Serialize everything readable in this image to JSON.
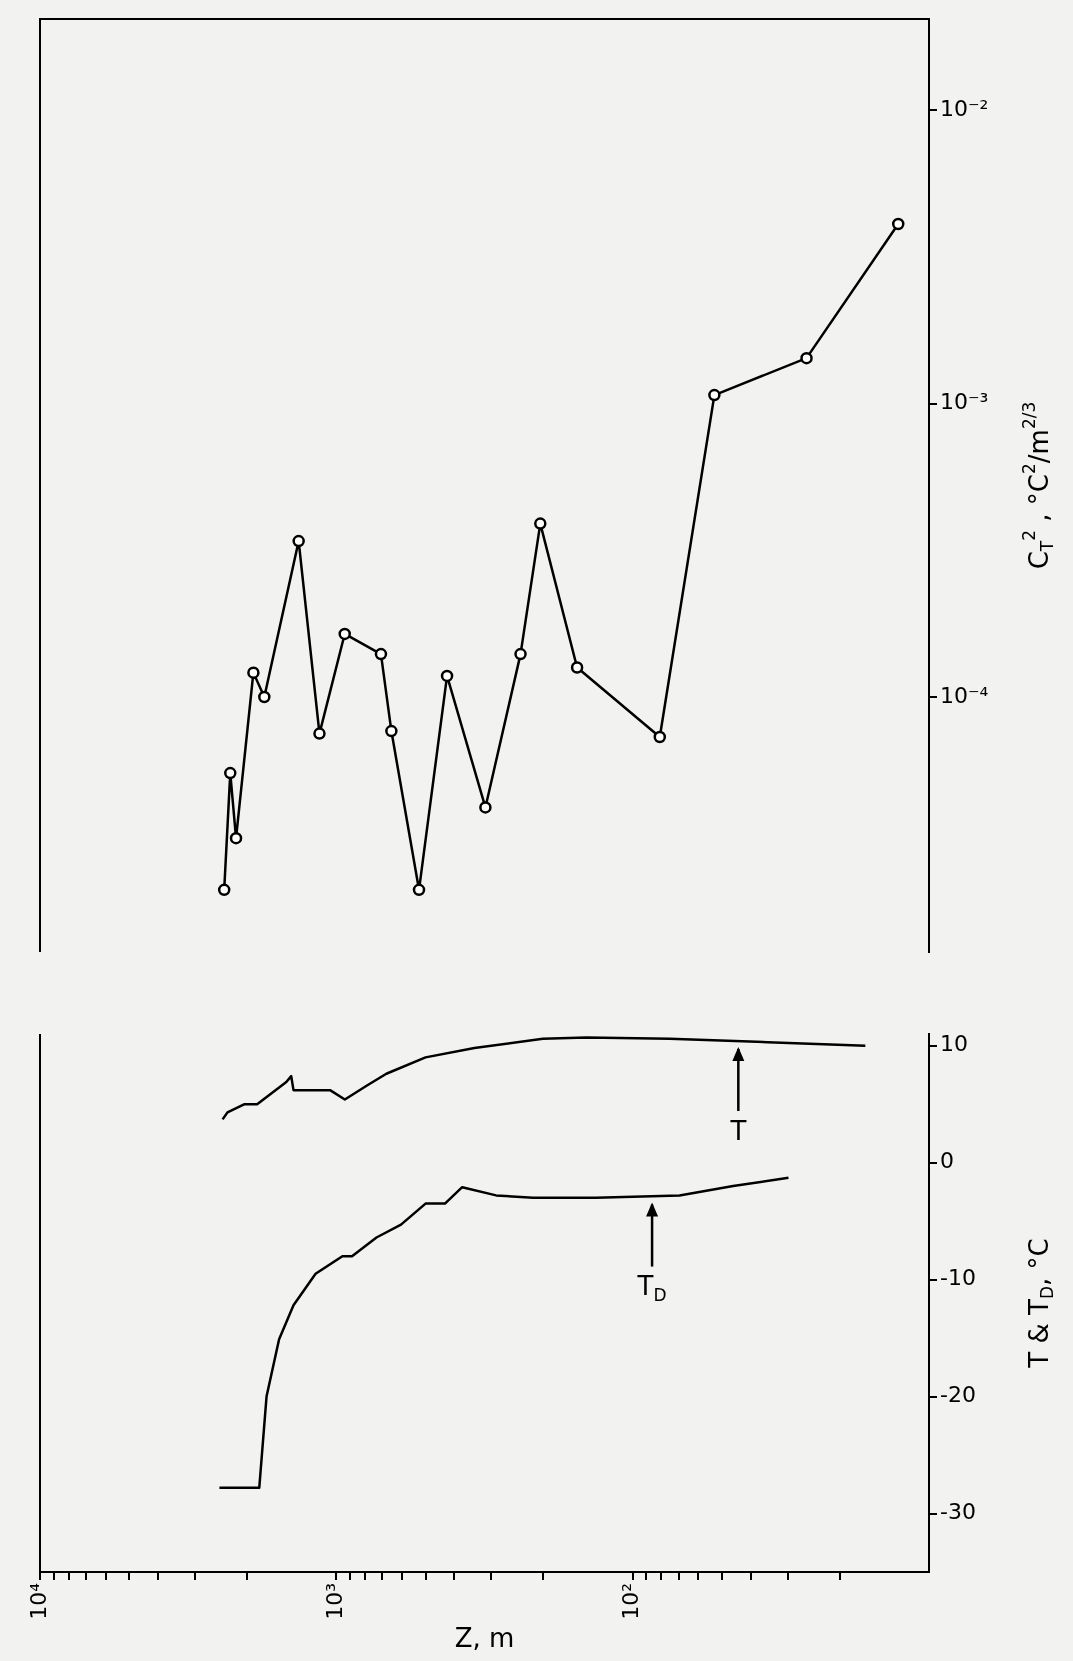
{
  "chart_data": [
    {
      "type": "line",
      "ylabel": "C$_{T}$$^{2}$ , °C$^{2}$/m$^{2/3}$",
      "log": "xy",
      "xlim": [
        10000,
        10
      ],
      "ylim": [
        1.35e-05,
        0.0205
      ],
      "yticks": [
        {
          "value": 0.0001,
          "label": "10⁻⁴"
        },
        {
          "value": 0.001,
          "label": "10⁻³"
        },
        {
          "value": 0.01,
          "label": "10⁻²"
        }
      ],
      "tick_labels": "y",
      "grid": false,
      "legend": false,
      "marker": "circle",
      "line_style": "solid",
      "series": [
        {
          "color": "#000000",
          "x": [
            2390,
            2280,
            2180,
            1905,
            1750,
            1340,
            1140,
            937,
            707,
            652,
            526,
            423,
            314,
            239,
            205,
            154,
            81,
            53,
            25.9,
            12.7
          ],
          "values": [
            2.2e-05,
            5.5e-05,
            3.3e-05,
            0.000121,
            0.0001,
            0.00034,
            7.5e-05,
            0.000164,
            0.00014,
            7.65e-05,
            2.2e-05,
            0.000118,
            4.2e-05,
            0.00014,
            0.00039,
            0.000126,
            7.3e-05,
            0.00107,
            0.00143,
            0.0041
          ]
        }
      ]
    },
    {
      "type": "line",
      "xlabel": "Z, m",
      "ylabel": "T & T$_{D}$, °C",
      "log": "x",
      "xlim": [
        10000,
        10
      ],
      "ylim": [
        -35,
        11
      ],
      "xticks": [
        {
          "value": 10000,
          "label": "10⁴"
        },
        {
          "value": 9000,
          "label": null
        },
        {
          "value": 8000,
          "label": null
        },
        {
          "value": 7000,
          "label": null
        },
        {
          "value": 6000,
          "label": null
        },
        {
          "value": 5000,
          "label": null
        },
        {
          "value": 4000,
          "label": null
        },
        {
          "value": 3000,
          "label": null
        },
        {
          "value": 2000,
          "label": null
        },
        {
          "value": 1000,
          "label": "10³"
        },
        {
          "value": 900,
          "label": null
        },
        {
          "value": 800,
          "label": null
        },
        {
          "value": 700,
          "label": null
        },
        {
          "value": 600,
          "label": null
        },
        {
          "value": 500,
          "label": null
        },
        {
          "value": 400,
          "label": null
        },
        {
          "value": 300,
          "label": null
        },
        {
          "value": 200,
          "label": null
        },
        {
          "value": 100,
          "label": "10²"
        },
        {
          "value": 90,
          "label": null
        },
        {
          "value": 80,
          "label": null
        },
        {
          "value": 70,
          "label": null
        },
        {
          "value": 60,
          "label": null
        },
        {
          "value": 50,
          "label": null
        },
        {
          "value": 40,
          "label": null
        },
        {
          "value": 30,
          "label": null
        },
        {
          "value": 20,
          "label": null
        }
      ],
      "yticks": [
        -30,
        -20,
        -10,
        0,
        10
      ],
      "grid": false,
      "legend": false,
      "marker": "none",
      "line_style": "solid",
      "annotations": [
        {
          "text": "T",
          "x": 44,
          "y": 10.4
        },
        {
          "text": "T$_{D}$",
          "x": 86,
          "y": -2.9
        }
      ],
      "series": [
        {
          "color": "#000000",
          "x": [
            2420,
            2330,
            2040,
            1850,
            1475,
            1420,
            1395,
            1050,
            936,
            788,
            678,
            500,
            342,
            201,
            143,
            75,
            35,
            16.4
          ],
          "values": [
            3.7,
            4.3,
            5.0,
            5.0,
            6.9,
            7.4,
            6.2,
            6.2,
            5.4,
            6.6,
            7.6,
            9.0,
            9.8,
            10.6,
            10.7,
            10.6,
            10.3,
            10.0
          ]
        },
        {
          "color": "#000000",
          "x": [
            2480,
            1820,
            1720,
            1560,
            1395,
            1175,
            954,
            885,
            732,
            605,
            500,
            430,
            376,
            289,
            217,
            133,
            69.5,
            45.8,
            29.8
          ],
          "values": [
            -27.8,
            -27.8,
            -20.0,
            -15.1,
            -12.2,
            -9.5,
            -8.0,
            -8.0,
            -6.4,
            -5.3,
            -3.5,
            -3.5,
            -2.1,
            -2.8,
            -3.0,
            -3.0,
            -2.8,
            -2.0,
            -1.3
          ]
        }
      ]
    }
  ]
}
